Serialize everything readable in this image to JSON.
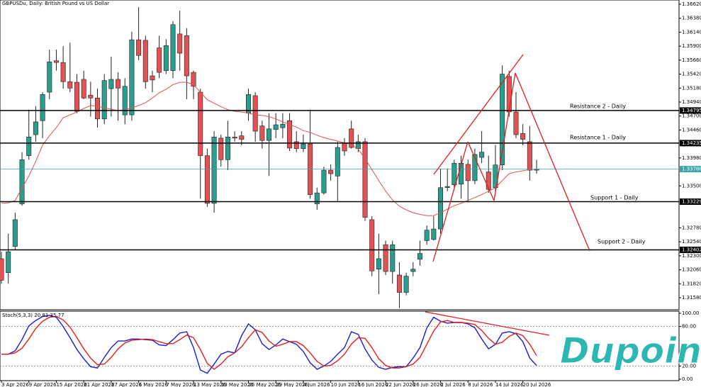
{
  "chart_data": [
    {
      "type": "candlestick",
      "title": "GBPUSDu, Daily:  British Pound vs US Dollar",
      "categories": [
        "3 Apr 2026",
        null,
        null,
        null,
        "9 Apr 2026",
        null,
        null,
        null,
        "15 Apr 2026",
        null,
        null,
        null,
        "21 Apr 2026",
        null,
        null,
        null,
        "27 Apr 2026",
        null,
        null,
        null,
        "1 May 2026",
        null,
        null,
        null,
        "7 May 2026",
        null,
        null,
        null,
        "13 May 2026",
        null,
        null,
        null,
        "19 May 2026",
        null,
        null,
        null,
        "25 May 2026",
        null,
        null,
        null,
        "29 May 2026",
        null,
        null,
        null,
        "4 Jun 2026",
        null,
        null,
        null,
        "10 Jun 2026",
        null,
        null,
        null,
        "16 Jun 2026",
        null,
        null,
        null,
        "22 Jun 2026",
        null,
        null,
        null,
        "26 Jun 2026",
        null,
        null,
        null,
        "2 Jul 2026",
        null,
        null,
        null,
        "8 Jul 2026",
        null,
        null,
        null,
        "14 Jul 2026",
        null,
        null,
        null,
        "20 Jul 2026",
        null,
        null
      ],
      "open": [
        1.3225,
        1.3201,
        1.3246,
        1.3319,
        1.3402,
        1.3438,
        1.3462,
        1.3511,
        1.3565,
        1.3562,
        1.3529,
        1.3528,
        1.3533,
        1.3506,
        1.3501,
        1.3465,
        1.3517,
        1.3533,
        1.3472,
        1.3472,
        1.3601,
        1.36,
        1.3539,
        1.3587,
        1.3548,
        1.3548,
        1.3611,
        1.3608,
        1.3545,
        1.3511,
        1.3402,
        1.332,
        1.3432,
        1.3395,
        1.3434,
        1.3436,
        1.3475,
        1.3505,
        1.3453,
        1.3428,
        1.3447,
        1.345,
        1.3462,
        1.3426,
        1.3414,
        1.3422,
        1.3319,
        1.3338,
        1.3377,
        1.3367,
        1.3424,
        1.3448,
        1.3414,
        1.3426,
        1.3292,
        1.3207,
        1.3249,
        1.3203,
        1.3197,
        1.3167,
        1.3203,
        1.3224,
        1.3256,
        1.3258,
        1.3276,
        1.3347,
        1.3352,
        1.3353,
        1.3387,
        1.3359,
        1.3399,
        1.3374,
        1.3347,
        1.3386,
        1.3538,
        1.3477,
        1.344,
        1.3426,
        1.3377
      ],
      "high": [
        1.3237,
        1.3268,
        1.3304,
        1.3408,
        1.3481,
        1.3487,
        1.3511,
        1.3584,
        1.3584,
        1.359,
        1.3596,
        1.3542,
        1.3548,
        1.3529,
        1.3517,
        1.3542,
        1.3572,
        1.3545,
        1.3535,
        1.3615,
        1.3657,
        1.3608,
        1.3548,
        1.3608,
        1.3602,
        1.3633,
        1.3651,
        1.3621,
        1.3548,
        1.3517,
        1.3414,
        1.3444,
        1.3438,
        1.3462,
        1.3444,
        1.3444,
        1.3517,
        1.3511,
        1.3462,
        1.3475,
        1.3475,
        1.3475,
        1.3475,
        1.3444,
        1.3438,
        1.3481,
        1.3347,
        1.3383,
        1.3387,
        1.3426,
        1.3432,
        1.3462,
        1.3438,
        1.3432,
        1.3298,
        1.3268,
        1.3256,
        1.3256,
        1.3219,
        1.3201,
        1.3219,
        1.3256,
        1.3282,
        1.3298,
        1.338,
        1.338,
        1.3395,
        1.3402,
        1.3395,
        1.3414,
        1.3444,
        1.3402,
        1.342,
        1.3557,
        1.3548,
        1.3511,
        1.3456,
        1.3453,
        1.3395
      ],
      "low": [
        1.3182,
        1.3182,
        1.3241,
        1.3316,
        1.3395,
        1.3426,
        1.3432,
        1.3499,
        1.3548,
        1.3517,
        1.3511,
        1.3475,
        1.3499,
        1.3469,
        1.345,
        1.3456,
        1.3469,
        1.3462,
        1.3456,
        1.3462,
        1.3566,
        1.3517,
        1.3511,
        1.3535,
        1.3542,
        1.3535,
        1.3548,
        1.3499,
        1.3499,
        1.3328,
        1.3314,
        1.3304,
        1.3383,
        1.3377,
        1.3426,
        1.342,
        1.3462,
        1.3426,
        1.3414,
        1.3367,
        1.3432,
        1.3432,
        1.341,
        1.3408,
        1.3408,
        1.3328,
        1.3309,
        1.3335,
        1.3359,
        1.3322,
        1.3402,
        1.3414,
        1.3408,
        1.329,
        1.3195,
        1.3164,
        1.3197,
        1.3182,
        1.314,
        1.3162,
        1.3195,
        1.3213,
        1.3249,
        1.3256,
        1.3268,
        1.3341,
        1.3347,
        1.3328,
        1.3322,
        1.3353,
        1.3389,
        1.3338,
        1.3341,
        1.3377,
        1.3469,
        1.3432,
        1.342,
        1.3359,
        1.3371
      ],
      "close": [
        1.3188,
        1.3237,
        1.3292,
        1.3395,
        1.3434,
        1.346,
        1.3507,
        1.3563,
        1.3562,
        1.3529,
        1.3518,
        1.3478,
        1.3501,
        1.3501,
        1.3465,
        1.3531,
        1.3533,
        1.3518,
        1.3521,
        1.3601,
        1.3574,
        1.3529,
        1.3532,
        1.3545,
        1.3591,
        1.3627,
        1.3578,
        1.3539,
        1.3521,
        1.3402,
        1.332,
        1.3434,
        1.3395,
        1.3434,
        1.3432,
        1.343,
        1.3507,
        1.3444,
        1.3428,
        1.3448,
        1.3455,
        1.3456,
        1.3415,
        1.3414,
        1.3422,
        1.3335,
        1.3338,
        1.3377,
        1.3371,
        1.3416,
        1.341,
        1.3416,
        1.3426,
        1.3296,
        1.3204,
        1.3225,
        1.3203,
        1.3249,
        1.3167,
        1.3195,
        1.3207,
        1.3234,
        1.3274,
        1.3276,
        1.3347,
        1.3349,
        1.3389,
        1.3389,
        1.3359,
        1.3404,
        1.3408,
        1.3344,
        1.3386,
        1.3542,
        1.3477,
        1.3438,
        1.343,
        1.3377,
        1.3379
      ],
      "up_color": "#2a9d8c",
      "down_color": "#e25252",
      "ma": {
        "color": "#e25252",
        "values": [
          1.332,
          1.3321,
          1.3325,
          1.3346,
          1.3367,
          1.3392,
          1.342,
          1.3436,
          1.345,
          1.3467,
          1.3472,
          1.3477,
          1.3483,
          1.3488,
          1.3487,
          1.3484,
          1.3482,
          1.3479,
          1.3481,
          1.3484,
          1.3488,
          1.3493,
          1.3501,
          1.351,
          1.3516,
          1.3524,
          1.3528,
          1.3528,
          1.3524,
          1.3511,
          1.3498,
          1.3492,
          1.3486,
          1.3481,
          1.3478,
          1.3477,
          1.3475,
          1.3472,
          1.3471,
          1.3469,
          1.3465,
          1.346,
          1.3455,
          1.3451,
          1.3445,
          1.3442,
          1.3437,
          1.3433,
          1.343,
          1.3427,
          1.3424,
          1.3421,
          1.3413,
          1.3397,
          1.3378,
          1.3359,
          1.3341,
          1.3326,
          1.3315,
          1.3309,
          1.3304,
          1.3301,
          1.3299,
          1.3299,
          1.3304,
          1.331,
          1.3316,
          1.332,
          1.3325,
          1.333,
          1.3335,
          1.3341,
          1.3347,
          1.3359,
          1.3371,
          1.3374,
          1.3376,
          1.3378,
          1.3379
        ]
      },
      "ylim": [
        1.3158,
        1.3662
      ],
      "yticks": [
        {
          "value": 1.3662,
          "label": "1.36620"
        },
        {
          "value": 1.3638,
          "label": "1.36380"
        },
        {
          "value": 1.3614,
          "label": "1.36140"
        },
        {
          "value": 1.359,
          "label": "1.35900"
        },
        {
          "value": 1.3566,
          "label": "1.35660"
        },
        {
          "value": 1.3542,
          "label": "1.35420"
        },
        {
          "value": 1.3518,
          "label": "1.35180"
        },
        {
          "value": 1.3494,
          "label": "1.34940"
        },
        {
          "value": 1.347,
          "label": "1.34700"
        },
        {
          "value": 1.3446,
          "label": "1.34460"
        },
        {
          "value": 1.3398,
          "label": "1.33980"
        },
        {
          "value": 1.335,
          "label": "1.33500"
        },
        {
          "value": 1.3278,
          "label": "1.32780"
        },
        {
          "value": 1.3254,
          "label": "1.32540"
        },
        {
          "value": 1.323,
          "label": "1.32300"
        },
        {
          "value": 1.3206,
          "label": "1.32060"
        },
        {
          "value": 1.3182,
          "label": "1.31820"
        },
        {
          "value": 1.3158,
          "label": "1.31580"
        }
      ],
      "levels": [
        {
          "label": "Resistance 2 - Daily",
          "value": 1.34795
        },
        {
          "label": "Resistance 1 - Daily",
          "value": 1.34235
        },
        {
          "label": "Support 1 - Daily",
          "value": 1.33229
        },
        {
          "label": "Support 2 - Daily",
          "value": 1.32402
        }
      ],
      "last_price": {
        "value": 1.33788,
        "color": "#3aa6a6"
      }
    },
    {
      "type": "line",
      "title": "Stoch(5,3,3) 20.81 35.77",
      "series": [
        {
          "color": "#1c1ccf",
          "values": [
            38,
            38,
            43,
            60,
            81,
            89,
            95,
            97,
            94,
            80,
            63,
            45,
            31,
            19,
            17,
            33,
            48,
            58,
            58,
            61,
            61,
            60,
            59,
            52,
            51,
            60,
            70,
            72,
            48,
            14,
            9,
            23,
            38,
            42,
            40,
            66,
            84,
            75,
            54,
            45,
            52,
            61,
            57,
            53,
            42,
            25,
            15,
            20,
            27,
            38,
            48,
            72,
            68,
            46,
            29,
            18,
            15,
            18,
            19,
            19,
            32,
            48,
            78,
            94,
            88,
            85,
            86,
            86,
            84,
            78,
            61,
            46,
            53,
            70,
            72,
            69,
            57,
            32,
            20.81
          ]
        },
        {
          "color": "#e01e1e",
          "values": [
            38,
            38,
            40,
            47,
            61,
            77,
            88,
            94,
            95,
            90,
            79,
            63,
            46,
            32,
            22,
            23,
            33,
            46,
            55,
            59,
            60,
            61,
            60,
            57,
            54,
            54,
            60,
            67,
            63,
            45,
            24,
            15,
            23,
            34,
            40,
            49,
            63,
            75,
            71,
            58,
            50,
            53,
            57,
            57,
            51,
            40,
            27,
            20,
            21,
            28,
            38,
            53,
            63,
            62,
            48,
            31,
            21,
            17,
            17,
            19,
            23,
            33,
            53,
            73,
            87,
            89,
            86,
            86,
            85,
            83,
            74,
            62,
            53,
            56,
            65,
            70,
            66,
            53,
            35.77
          ]
        }
      ],
      "ylim": [
        0,
        100
      ],
      "yticks": [
        {
          "value": 100,
          "label": "100.00"
        },
        {
          "value": 80,
          "label": "80.00"
        },
        {
          "value": 20,
          "label": "20.00"
        },
        {
          "value": 0,
          "label": "0.00"
        }
      ],
      "levels": [
        80,
        20
      ]
    }
  ],
  "logo": "Dupoin"
}
